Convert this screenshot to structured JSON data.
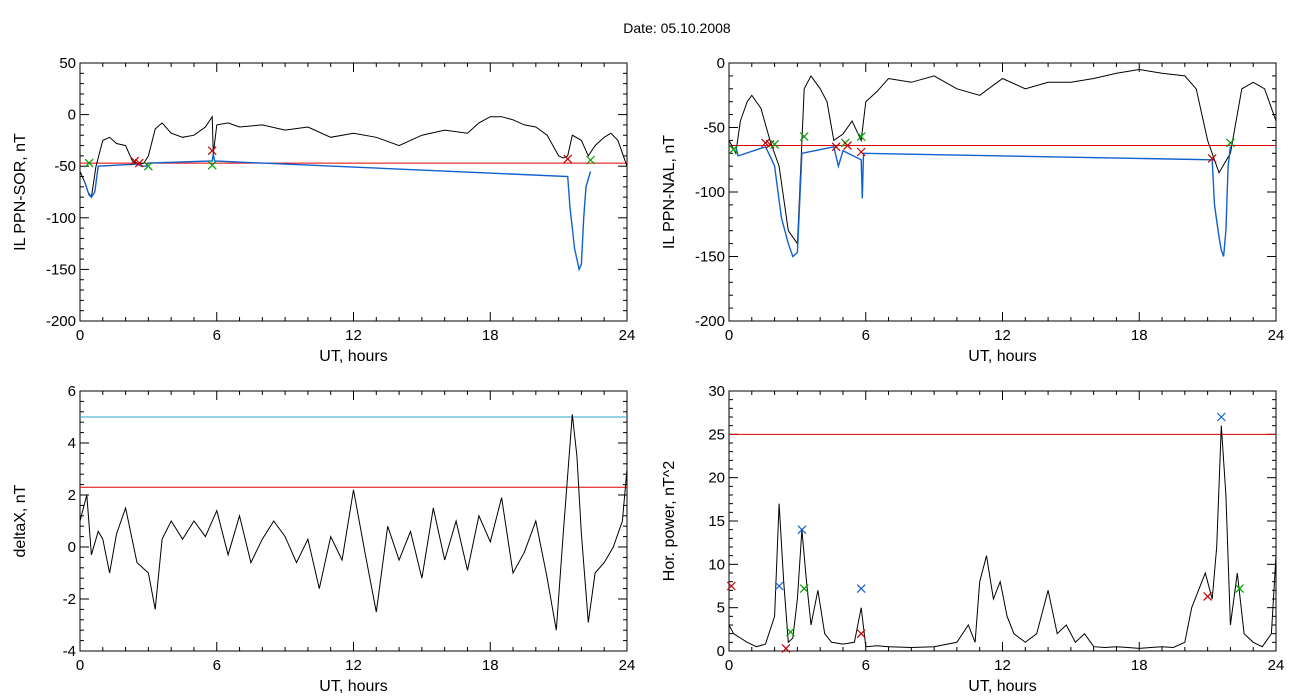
{
  "header": {
    "title": "Date:  05.10.2008"
  },
  "chart_data": [
    {
      "type": "line",
      "ylabel": "IL PPN-SOR, nT",
      "xlabel": "UT, hours",
      "xlim": [
        0,
        24
      ],
      "ylim": [
        -200,
        50
      ],
      "xticks": [
        "0",
        "6",
        "12",
        "18",
        "24"
      ],
      "yticks": [
        "50",
        "0",
        "-50",
        "-100",
        "-150",
        "-200"
      ],
      "ytick_values": [
        50,
        0,
        -50,
        -100,
        -150,
        -200
      ],
      "threshold_lines": [
        {
          "y": -47,
          "color": "#e00000"
        }
      ],
      "series": [
        {
          "color": "#000000",
          "x": [
            0,
            0.2,
            0.4,
            0.5,
            0.7,
            1.0,
            1.3,
            1.6,
            2.0,
            2.3,
            2.5,
            2.8,
            3.0,
            3.3,
            3.6,
            4.0,
            4.5,
            5.0,
            5.5,
            5.8,
            5.85,
            6.0,
            6.5,
            7.0,
            8.0,
            9.0,
            10.0,
            11.0,
            12.0,
            13.0,
            14.0,
            15.0,
            16.0,
            17.0,
            17.5,
            18.0,
            18.5,
            19.0,
            19.5,
            20.0,
            20.5,
            21.0,
            21.2,
            21.4,
            21.6,
            22.0,
            22.3,
            22.6,
            23.0,
            23.3,
            23.6,
            24.0
          ],
          "y": [
            -55,
            -65,
            -78,
            -80,
            -50,
            -25,
            -22,
            -28,
            -30,
            -45,
            -48,
            -47,
            -40,
            -14,
            -8,
            -18,
            -22,
            -20,
            -12,
            -2,
            -38,
            -10,
            -8,
            -12,
            -10,
            -15,
            -12,
            -22,
            -18,
            -22,
            -30,
            -20,
            -15,
            -18,
            -8,
            -2,
            -2,
            -5,
            -10,
            -12,
            -20,
            -40,
            -42,
            -40,
            -20,
            -25,
            -40,
            -30,
            -22,
            -18,
            -25,
            -50
          ]
        },
        {
          "color": "#1060d0",
          "x": [
            0.2,
            0.35,
            0.5,
            0.65,
            0.8,
            2.5,
            2.7,
            2.9,
            3.0,
            5.8,
            5.85,
            5.9,
            21.4,
            21.5,
            21.6,
            21.7,
            21.8,
            21.9,
            22.0,
            22.1,
            22.2,
            22.4
          ],
          "y": [
            -65,
            -75,
            -80,
            -75,
            -50,
            -48,
            -50,
            -50,
            -47,
            -45,
            -38,
            -45,
            -60,
            -90,
            -110,
            -130,
            -140,
            -150,
            -145,
            -100,
            -70,
            -55
          ]
        }
      ],
      "markers": [
        {
          "x": 0.4,
          "y": -47,
          "color": "#00a000"
        },
        {
          "x": 2.4,
          "y": -45,
          "color": "#c00000"
        },
        {
          "x": 2.6,
          "y": -47,
          "color": "#c00000"
        },
        {
          "x": 3.0,
          "y": -50,
          "color": "#00a000"
        },
        {
          "x": 5.8,
          "y": -35,
          "color": "#c00000"
        },
        {
          "x": 5.8,
          "y": -49,
          "color": "#00a000"
        },
        {
          "x": 21.4,
          "y": -43,
          "color": "#c00000"
        },
        {
          "x": 22.4,
          "y": -44,
          "color": "#00a000"
        }
      ]
    },
    {
      "type": "line",
      "ylabel": "IL PPN-NAL, nT",
      "xlabel": "UT, hours",
      "xlim": [
        0,
        24
      ],
      "ylim": [
        -200,
        0
      ],
      "xticks": [
        "0",
        "6",
        "12",
        "18",
        "24"
      ],
      "yticks": [
        "0",
        "-50",
        "-100",
        "-150",
        "-200"
      ],
      "ytick_values": [
        0,
        -50,
        -100,
        -150,
        -200
      ],
      "threshold_lines": [
        {
          "y": -64,
          "color": "#e00000"
        }
      ],
      "series": [
        {
          "color": "#000000",
          "x": [
            0,
            0.3,
            0.5,
            0.8,
            1.0,
            1.4,
            1.8,
            2.2,
            2.6,
            3.0,
            3.3,
            3.6,
            4.0,
            4.3,
            4.6,
            5.0,
            5.4,
            5.8,
            6.0,
            6.5,
            7.0,
            8.0,
            9.0,
            10.0,
            11.0,
            12.0,
            13.0,
            14.0,
            15.0,
            16.0,
            17.0,
            18.0,
            19.0,
            20.0,
            20.5,
            21.0,
            21.5,
            22.0,
            22.5,
            23.0,
            23.5,
            24.0
          ],
          "y": [
            -60,
            -70,
            -45,
            -30,
            -25,
            -35,
            -60,
            -80,
            -130,
            -140,
            -20,
            -10,
            -20,
            -30,
            -60,
            -55,
            -45,
            -60,
            -30,
            -22,
            -12,
            -15,
            -10,
            -20,
            -25,
            -12,
            -20,
            -15,
            -15,
            -12,
            -8,
            -5,
            -8,
            -10,
            -20,
            -60,
            -85,
            -70,
            -20,
            -15,
            -20,
            -45
          ]
        },
        {
          "color": "#1060d0",
          "x": [
            0.3,
            0.4,
            1.6,
            1.8,
            2.0,
            2.3,
            2.6,
            2.8,
            3.0,
            3.2,
            4.6,
            4.8,
            5.0,
            5.8,
            5.85,
            5.9,
            21.2,
            21.3,
            21.5,
            21.6,
            21.7,
            21.8,
            21.9,
            22.0
          ],
          "y": [
            -65,
            -72,
            -65,
            -72,
            -80,
            -120,
            -140,
            -150,
            -147,
            -70,
            -65,
            -80,
            -68,
            -75,
            -105,
            -70,
            -75,
            -110,
            -135,
            -145,
            -150,
            -130,
            -80,
            -65
          ]
        }
      ],
      "markers": [
        {
          "x": 0.2,
          "y": -67,
          "color": "#00a000"
        },
        {
          "x": 1.6,
          "y": -62,
          "color": "#c00000"
        },
        {
          "x": 1.8,
          "y": -63,
          "color": "#c00000"
        },
        {
          "x": 2.0,
          "y": -63,
          "color": "#00a000"
        },
        {
          "x": 3.3,
          "y": -57,
          "color": "#00a000"
        },
        {
          "x": 4.7,
          "y": -65,
          "color": "#c00000"
        },
        {
          "x": 5.1,
          "y": -62,
          "color": "#00a000"
        },
        {
          "x": 5.2,
          "y": -64,
          "color": "#c00000"
        },
        {
          "x": 5.8,
          "y": -57,
          "color": "#00a000"
        },
        {
          "x": 5.8,
          "y": -69,
          "color": "#c00000"
        },
        {
          "x": 21.2,
          "y": -74,
          "color": "#c00000"
        },
        {
          "x": 22.0,
          "y": -62,
          "color": "#00a000"
        }
      ]
    },
    {
      "type": "line",
      "ylabel": "deltaX, nT",
      "xlabel": "UT, hours",
      "xlim": [
        0,
        24
      ],
      "ylim": [
        -4,
        6
      ],
      "xticks": [
        "0",
        "6",
        "12",
        "18",
        "24"
      ],
      "yticks": [
        "6",
        "4",
        "2",
        "0",
        "-2",
        "-4"
      ],
      "ytick_values": [
        6,
        4,
        2,
        0,
        -2,
        -4
      ],
      "threshold_lines": [
        {
          "y": 5.0,
          "color": "#2aa4c8"
        },
        {
          "y": 2.3,
          "color": "#e00000"
        }
      ],
      "series": [
        {
          "color": "#000000",
          "x": [
            0,
            0.3,
            0.5,
            0.8,
            1.0,
            1.3,
            1.6,
            2.0,
            2.5,
            3.0,
            3.3,
            3.6,
            4.0,
            4.5,
            5.0,
            5.5,
            6.0,
            6.5,
            7.0,
            7.5,
            8.0,
            8.5,
            9.0,
            9.5,
            10.0,
            10.5,
            11.0,
            11.5,
            12.0,
            12.5,
            13.0,
            13.5,
            14.0,
            14.5,
            15.0,
            15.5,
            16.0,
            16.5,
            17.0,
            17.5,
            18.0,
            18.5,
            19.0,
            19.5,
            20.0,
            20.5,
            20.9,
            21.2,
            21.6,
            21.8,
            22.0,
            22.3,
            22.6,
            23.0,
            23.4,
            23.8,
            24.0
          ],
          "y": [
            1.0,
            2.0,
            -0.3,
            0.6,
            0.3,
            -1.0,
            0.5,
            1.5,
            -0.6,
            -1.0,
            -2.4,
            0.3,
            1.0,
            0.3,
            1.0,
            0.4,
            1.4,
            -0.3,
            1.2,
            -0.6,
            0.3,
            1.0,
            0.4,
            -0.6,
            0.3,
            -1.6,
            0.4,
            -0.5,
            2.2,
            -0.2,
            -2.5,
            0.8,
            -0.5,
            0.6,
            -1.2,
            1.5,
            -0.5,
            1.0,
            -0.9,
            1.2,
            0.2,
            1.9,
            -1.0,
            -0.2,
            1.0,
            -1.2,
            -3.2,
            0.5,
            5.1,
            3.5,
            0.5,
            -2.9,
            -1.0,
            -0.6,
            0.0,
            1.0,
            3.0
          ]
        }
      ],
      "markers": []
    },
    {
      "type": "line",
      "ylabel": "Hor. power, nT^2",
      "xlabel": "UT, hours",
      "xlim": [
        0,
        24
      ],
      "ylim": [
        0,
        30
      ],
      "xticks": [
        "0",
        "6",
        "12",
        "18",
        "24"
      ],
      "yticks": [
        "30",
        "25",
        "20",
        "15",
        "10",
        "5",
        "0"
      ],
      "ytick_values": [
        30,
        25,
        20,
        15,
        10,
        5,
        0
      ],
      "threshold_lines": [
        {
          "y": 25,
          "color": "#e00000"
        }
      ],
      "series": [
        {
          "color": "#000000",
          "x": [
            0,
            0.2,
            0.5,
            0.8,
            1.2,
            1.6,
            2.0,
            2.2,
            2.4,
            2.6,
            2.8,
            3.0,
            3.2,
            3.4,
            3.6,
            3.9,
            4.2,
            4.5,
            5.0,
            5.5,
            5.8,
            6.0,
            6.5,
            7.0,
            8.0,
            9.0,
            10.0,
            10.5,
            10.8,
            11.0,
            11.3,
            11.6,
            11.9,
            12.2,
            12.5,
            13.0,
            13.5,
            14.0,
            14.4,
            14.8,
            15.2,
            15.6,
            16.0,
            16.5,
            17.0,
            17.5,
            18.0,
            18.5,
            19.0,
            19.5,
            20.0,
            20.3,
            20.6,
            20.9,
            21.2,
            21.4,
            21.6,
            21.8,
            22.0,
            22.3,
            22.6,
            23.0,
            23.4,
            23.8,
            24.0
          ],
          "y": [
            3,
            2,
            1.5,
            1,
            0.5,
            0.8,
            4,
            17,
            8,
            1,
            1.5,
            6,
            14,
            8,
            3,
            7,
            2,
            1,
            0.8,
            1,
            5,
            0.5,
            0.6,
            0.5,
            0.4,
            0.5,
            1,
            3,
            1,
            8,
            11,
            6,
            8,
            4,
            2,
            1,
            2,
            7,
            2,
            3,
            1,
            2,
            0.5,
            0.4,
            0.5,
            0.4,
            0.3,
            0.4,
            0.5,
            0.4,
            1,
            5,
            7,
            9,
            6,
            12,
            26,
            18,
            3,
            9,
            2,
            1,
            0.5,
            2,
            11
          ]
        }
      ],
      "markers": [
        {
          "x": 0.1,
          "y": 7.5,
          "color": "#c00000"
        },
        {
          "x": 2.2,
          "y": 7.5,
          "color": "#1060d0"
        },
        {
          "x": 2.5,
          "y": 0.3,
          "color": "#c00000"
        },
        {
          "x": 2.7,
          "y": 2.2,
          "color": "#00a000"
        },
        {
          "x": 3.2,
          "y": 14,
          "color": "#1060d0"
        },
        {
          "x": 3.3,
          "y": 7.2,
          "color": "#00a000"
        },
        {
          "x": 5.8,
          "y": 2.0,
          "color": "#c00000"
        },
        {
          "x": 5.8,
          "y": 7.2,
          "color": "#1060d0"
        },
        {
          "x": 21.0,
          "y": 6.3,
          "color": "#c00000"
        },
        {
          "x": 21.6,
          "y": 27,
          "color": "#1060d0"
        },
        {
          "x": 22.4,
          "y": 7.2,
          "color": "#00a000"
        }
      ]
    }
  ]
}
